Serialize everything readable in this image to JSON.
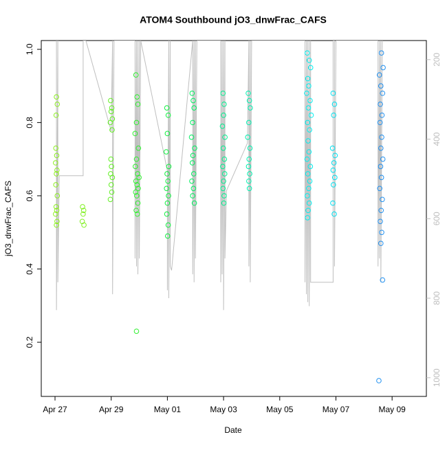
{
  "chart_data": {
    "type": "scatter",
    "title": "ATOM4 Southbound jO3_dnwFrac_CAFS",
    "x_label": "Date",
    "y_label": "jO3_dnwFrac_CAFS",
    "xlim": [
      -0.49,
      13.22
    ],
    "xticks": [
      {
        "value": 0,
        "label": "Apr 27"
      },
      {
        "value": 2,
        "label": "Apr 29"
      },
      {
        "value": 4,
        "label": "May 01"
      },
      {
        "value": 6,
        "label": "May 03"
      },
      {
        "value": 8,
        "label": "May 05"
      },
      {
        "value": 10,
        "label": "May 07"
      },
      {
        "value": 12,
        "label": "May 09"
      }
    ],
    "ylim": [
      0.052,
      1.024
    ],
    "yticks": [
      0.2,
      0.4,
      0.6,
      0.8,
      {
        "value": 1,
        "label": "1.0"
      }
    ],
    "y2lim": [
      1047,
      152
    ],
    "y2ticks": [
      200,
      400,
      600,
      800,
      1000
    ],
    "y2_color": "#bebebe",
    "x": [
      0.05,
      0.08,
      0.04,
      0.03,
      0.06,
      0.02,
      0.07,
      0.05,
      0.03,
      0.08,
      0.04,
      0.06,
      0.02,
      0.07,
      0.05,
      0.98,
      1.02,
      1.0,
      0.97,
      1.03,
      1.98,
      2.02,
      2.0,
      2.04,
      1.97,
      2.03,
      1.99,
      2.01,
      1.98,
      2.04,
      2.0,
      2.02,
      1.97,
      2.88,
      2.92,
      2.95,
      2.9,
      2.85,
      2.97,
      2.9,
      2.86,
      2.94,
      2.99,
      2.88,
      2.92,
      2.96,
      2.87,
      2.91,
      2.95,
      2.89,
      2.93,
      2.9,
      3.98,
      4.03,
      4.0,
      3.96,
      4.05,
      3.99,
      4.02,
      3.97,
      4.04,
      4.0,
      3.98,
      4.03,
      4.01,
      4.88,
      4.92,
      4.95,
      4.9,
      4.86,
      4.97,
      4.91,
      4.89,
      4.94,
      4.87,
      4.93,
      4.9,
      4.96,
      5.98,
      6.02,
      6.0,
      5.96,
      6.05,
      5.99,
      6.03,
      5.97,
      6.04,
      6.0,
      5.98,
      6.02,
      6.01,
      6.88,
      6.92,
      6.95,
      6.9,
      6.86,
      6.94,
      6.91,
      6.89,
      6.93,
      6.9,
      6.92,
      8.98,
      9.05,
      9.1,
      9.0,
      9.03,
      8.96,
      9.08,
      9.02,
      9.12,
      8.99,
      9.06,
      9.01,
      9.04,
      8.97,
      9.09,
      9.0,
      9.07,
      9.03,
      8.98,
      9.05,
      9.01,
      8.99,
      9.9,
      9.95,
      9.92,
      9.88,
      9.97,
      9.93,
      9.9,
      9.96,
      9.91,
      9.89,
      9.94,
      11.62,
      11.68,
      11.55,
      11.6,
      11.66,
      11.58,
      11.64,
      11.57,
      11.63,
      11.6,
      11.67,
      11.59,
      11.62,
      11.56,
      11.65,
      11.61,
      11.58,
      11.63,
      11.6,
      11.66,
      11.53
    ],
    "values": [
      0.87,
      0.85,
      0.82,
      0.73,
      0.71,
      0.69,
      0.67,
      0.66,
      0.63,
      0.6,
      0.57,
      0.56,
      0.55,
      0.53,
      0.52,
      0.57,
      0.56,
      0.55,
      0.53,
      0.52,
      0.86,
      0.84,
      0.83,
      0.81,
      0.8,
      0.78,
      0.7,
      0.68,
      0.66,
      0.65,
      0.63,
      0.61,
      0.59,
      0.93,
      0.87,
      0.85,
      0.8,
      0.77,
      0.73,
      0.7,
      0.68,
      0.66,
      0.65,
      0.64,
      0.63,
      0.62,
      0.61,
      0.6,
      0.58,
      0.56,
      0.55,
      0.23,
      0.84,
      0.82,
      0.77,
      0.72,
      0.68,
      0.66,
      0.64,
      0.62,
      0.6,
      0.58,
      0.55,
      0.52,
      0.49,
      0.88,
      0.86,
      0.84,
      0.8,
      0.76,
      0.73,
      0.71,
      0.69,
      0.66,
      0.64,
      0.62,
      0.6,
      0.58,
      0.88,
      0.85,
      0.82,
      0.79,
      0.76,
      0.73,
      0.7,
      0.68,
      0.66,
      0.64,
      0.62,
      0.6,
      0.58,
      0.88,
      0.86,
      0.84,
      0.8,
      0.76,
      0.73,
      0.7,
      0.68,
      0.66,
      0.64,
      0.62,
      0.99,
      0.97,
      0.95,
      0.92,
      0.9,
      0.88,
      0.86,
      0.84,
      0.82,
      0.8,
      0.78,
      0.75,
      0.72,
      0.7,
      0.68,
      0.66,
      0.64,
      0.62,
      0.6,
      0.58,
      0.56,
      0.54,
      0.88,
      0.85,
      0.82,
      0.73,
      0.71,
      0.69,
      0.67,
      0.65,
      0.63,
      0.58,
      0.55,
      0.99,
      0.95,
      0.93,
      0.9,
      0.88,
      0.85,
      0.82,
      0.8,
      0.76,
      0.73,
      0.7,
      0.68,
      0.65,
      0.62,
      0.59,
      0.56,
      0.53,
      0.5,
      0.47,
      0.37,
      0.095
    ],
    "colors": [
      "#8cf020",
      "#8cf020",
      "#8cf020",
      "#8cf020",
      "#8cf020",
      "#8cf020",
      "#8cf020",
      "#8cf020",
      "#8cf020",
      "#8cf020",
      "#8cf020",
      "#8cf020",
      "#8cf020",
      "#8cf020",
      "#8cf020",
      "#80f020",
      "#80f020",
      "#80f020",
      "#80f020",
      "#80f020",
      "#60f020",
      "#60f020",
      "#60f020",
      "#60f020",
      "#60f020",
      "#60f020",
      "#60f020",
      "#60f020",
      "#60f020",
      "#60f020",
      "#60f020",
      "#60f020",
      "#60f020",
      "#30f030",
      "#30f030",
      "#30f030",
      "#30f030",
      "#30f030",
      "#30f030",
      "#30f030",
      "#30f030",
      "#30f030",
      "#30f030",
      "#30f030",
      "#30f030",
      "#30f030",
      "#30f030",
      "#30f030",
      "#30f030",
      "#30f030",
      "#30f030",
      "#30f030",
      "#10f040",
      "#10f040",
      "#10f040",
      "#10f040",
      "#10f040",
      "#10f040",
      "#10f040",
      "#10f040",
      "#10f040",
      "#10f040",
      "#10f040",
      "#10f040",
      "#10f040",
      "#00f060",
      "#00f060",
      "#00f060",
      "#00f060",
      "#00f060",
      "#00f060",
      "#00f060",
      "#00f060",
      "#00f060",
      "#00f060",
      "#00f060",
      "#00f060",
      "#00f060",
      "#00f090",
      "#00f090",
      "#00f090",
      "#00f090",
      "#00f090",
      "#00f090",
      "#00f090",
      "#00f090",
      "#00f090",
      "#00f090",
      "#00f090",
      "#00f090",
      "#00f090",
      "#00f0b0",
      "#00f0b0",
      "#00f0b0",
      "#00f0b0",
      "#00f0b0",
      "#00f0b0",
      "#00f0b0",
      "#00f0b0",
      "#00f0b0",
      "#00f0b0",
      "#00f0b0",
      "#00f0f0",
      "#00f0f0",
      "#00f0f0",
      "#00f0f0",
      "#00f0f0",
      "#00f0f0",
      "#00f0f0",
      "#00f0f0",
      "#00f0f0",
      "#00f0f0",
      "#00f0f0",
      "#00f0f0",
      "#00f0f0",
      "#00f0f0",
      "#00f0f0",
      "#00f0f0",
      "#00f0f0",
      "#00f0f0",
      "#00f0f0",
      "#00f0f0",
      "#00f0f0",
      "#00f0f0",
      "#00e0f0",
      "#00e0f0",
      "#00e0f0",
      "#00e0f0",
      "#00e0f0",
      "#00e0f0",
      "#00e0f0",
      "#00e0f0",
      "#00e0f0",
      "#00e0f0",
      "#00e0f0",
      "#2090f0",
      "#2090f0",
      "#2090f0",
      "#2090f0",
      "#2090f0",
      "#2090f0",
      "#2090f0",
      "#2090f0",
      "#2090f0",
      "#2090f0",
      "#2090f0",
      "#2090f0",
      "#2090f0",
      "#2090f0",
      "#2090f0",
      "#2090f0",
      "#2090f0",
      "#2090f0",
      "#2090f0",
      "#2090f0",
      "#2090f0"
    ],
    "y2_x": [
      0.05,
      0.05,
      0.1,
      0.1,
      0.15,
      1.0,
      1.0,
      1.1,
      2.0,
      2.05,
      2.05,
      2.1,
      2.85,
      2.85,
      2.9,
      2.9,
      2.95,
      2.95,
      3.0,
      3.0,
      3.05,
      4.0,
      4.0,
      4.05,
      4.05,
      4.1,
      4.1,
      4.15,
      4.9,
      4.9,
      4.95,
      4.95,
      5.0,
      5.0,
      5.05,
      5.9,
      5.9,
      5.95,
      5.95,
      6.0,
      6.0,
      6.05,
      6.05,
      6.1,
      6.85,
      6.9,
      6.9,
      6.95,
      6.95,
      7.0,
      8.9,
      8.9,
      8.95,
      8.95,
      9.0,
      9.0,
      9.05,
      9.05,
      9.1,
      9.1,
      9.9,
      9.9,
      9.95,
      9.95,
      10.0,
      11.5,
      11.5,
      11.55,
      11.55,
      11.6,
      11.6,
      11.65
    ],
    "y2_values": [
      152,
      830,
      152,
      760,
      492,
      492,
      152,
      152,
      380,
      152,
      790,
      152,
      152,
      700,
      152,
      720,
      152,
      740,
      152,
      700,
      152,
      480,
      780,
      152,
      800,
      152,
      720,
      730,
      152,
      740,
      152,
      760,
      152,
      700,
      152,
      152,
      760,
      152,
      740,
      152,
      830,
      152,
      700,
      530,
      410,
      152,
      720,
      152,
      760,
      152,
      152,
      760,
      152,
      790,
      152,
      810,
      152,
      820,
      152,
      760,
      760,
      152,
      152,
      720,
      152,
      152,
      720,
      152,
      700,
      152,
      760,
      152
    ]
  }
}
